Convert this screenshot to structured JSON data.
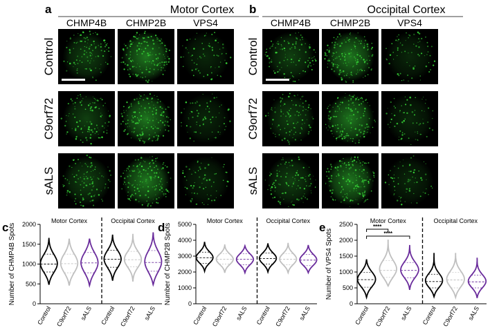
{
  "figure": {
    "panel_a": {
      "letter": "a",
      "title": "Motor Cortex",
      "columns": [
        "CHMP4B",
        "CHMP2B",
        "VPS4"
      ],
      "rows": [
        "Control",
        "C9orf72",
        "sALS"
      ],
      "scale_bar": true
    },
    "panel_b": {
      "letter": "b",
      "title": "Occipital Cortex",
      "columns": [
        "CHMP4B",
        "CHMP2B",
        "VPS4"
      ],
      "rows": [
        "Control",
        "C9orf72",
        "sALS"
      ],
      "scale_bar": true
    },
    "colors": {
      "control": "#000000",
      "c9orf72": "#bfbfbf",
      "sals": "#6a2c9c",
      "fluorescence": "#37d437",
      "image_background": "#000000"
    }
  },
  "chart_data": [
    {
      "type": "violin",
      "panel": "c",
      "ylabel": "Number of CHMP4B Spots",
      "ylim": [
        0,
        2000
      ],
      "yticks": [
        0,
        500,
        1000,
        1500,
        2000
      ],
      "groups": [
        {
          "region": "Motor Cortex",
          "categories": [
            "Control",
            "C9orf72",
            "sALS"
          ]
        },
        {
          "region": "Occipital Cortex",
          "categories": [
            "Control",
            "C9orf72",
            "sALS"
          ]
        }
      ],
      "series": [
        {
          "region": "Motor Cortex",
          "category": "Control",
          "min": 480,
          "q1": 800,
          "median": 1000,
          "q3": 1250,
          "max": 1660
        },
        {
          "region": "Motor Cortex",
          "category": "C9orf72",
          "min": 460,
          "q1": 780,
          "median": 1010,
          "q3": 1250,
          "max": 1640
        },
        {
          "region": "Motor Cortex",
          "category": "sALS",
          "min": 460,
          "q1": 780,
          "median": 1030,
          "q3": 1290,
          "max": 1640
        },
        {
          "region": "Occipital Cortex",
          "category": "Control",
          "min": 580,
          "q1": 920,
          "median": 1120,
          "q3": 1350,
          "max": 1740
        },
        {
          "region": "Occipital Cortex",
          "category": "C9orf72",
          "min": 560,
          "q1": 930,
          "median": 1110,
          "q3": 1320,
          "max": 1760
        },
        {
          "region": "Occipital Cortex",
          "category": "sALS",
          "min": 480,
          "q1": 820,
          "median": 1040,
          "q3": 1340,
          "max": 1800
        }
      ],
      "annotations": []
    },
    {
      "type": "violin",
      "panel": "d",
      "ylabel": "Number of CHMP2B Spots",
      "ylim": [
        0,
        5000
      ],
      "yticks": [
        0,
        1000,
        2000,
        3000,
        4000,
        5000
      ],
      "groups": [
        {
          "region": "Motor Cortex",
          "categories": [
            "Control",
            "C9orf72",
            "sALS"
          ]
        },
        {
          "region": "Occipital Cortex",
          "categories": [
            "Control",
            "C9orf72",
            "sALS"
          ]
        }
      ],
      "series": [
        {
          "region": "Motor Cortex",
          "category": "Control",
          "min": 2050,
          "q1": 2550,
          "median": 2900,
          "q3": 3250,
          "max": 3900
        },
        {
          "region": "Motor Cortex",
          "category": "C9orf72",
          "min": 1950,
          "q1": 2500,
          "median": 2800,
          "q3": 3150,
          "max": 3700
        },
        {
          "region": "Motor Cortex",
          "category": "sALS",
          "min": 1950,
          "q1": 2450,
          "median": 2800,
          "q3": 3150,
          "max": 3650
        },
        {
          "region": "Occipital Cortex",
          "category": "Control",
          "min": 2000,
          "q1": 2500,
          "median": 2850,
          "q3": 3200,
          "max": 3800
        },
        {
          "region": "Occipital Cortex",
          "category": "C9orf72",
          "min": 1950,
          "q1": 2450,
          "median": 2800,
          "q3": 3150,
          "max": 3800
        },
        {
          "region": "Occipital Cortex",
          "category": "sALS",
          "min": 1950,
          "q1": 2400,
          "median": 2750,
          "q3": 3100,
          "max": 3700
        }
      ],
      "annotations": []
    },
    {
      "type": "violin",
      "panel": "e",
      "ylabel": "Number of VPS4 Spots",
      "ylim": [
        0,
        2500
      ],
      "yticks": [
        0,
        500,
        1000,
        1500,
        2000,
        2500
      ],
      "groups": [
        {
          "region": "Motor Cortex",
          "categories": [
            "Control",
            "C9orf72",
            "sALS"
          ]
        },
        {
          "region": "Occipital Cortex",
          "categories": [
            "Control",
            "C9orf72",
            "sALS"
          ]
        }
      ],
      "series": [
        {
          "region": "Motor Cortex",
          "category": "Control",
          "min": 200,
          "q1": 520,
          "median": 760,
          "q3": 990,
          "max": 1400
        },
        {
          "region": "Motor Cortex",
          "category": "C9orf72",
          "min": 560,
          "q1": 830,
          "median": 1050,
          "q3": 1360,
          "max": 2000
        },
        {
          "region": "Motor Cortex",
          "category": "sALS",
          "min": 440,
          "q1": 820,
          "median": 1050,
          "q3": 1300,
          "max": 1850
        },
        {
          "region": "Occipital Cortex",
          "category": "Control",
          "min": 220,
          "q1": 500,
          "median": 700,
          "q3": 930,
          "max": 1600
        },
        {
          "region": "Occipital Cortex",
          "category": "C9orf72",
          "min": 200,
          "q1": 500,
          "median": 750,
          "q3": 990,
          "max": 1580
        },
        {
          "region": "Occipital Cortex",
          "category": "sALS",
          "min": 180,
          "q1": 500,
          "median": 690,
          "q3": 900,
          "max": 1450
        }
      ],
      "annotations": [
        {
          "text": "****",
          "from": "Control",
          "to": "C9orf72",
          "region": "Motor Cortex"
        },
        {
          "text": "****",
          "from": "Control",
          "to": "sALS",
          "region": "Motor Cortex"
        }
      ]
    }
  ]
}
